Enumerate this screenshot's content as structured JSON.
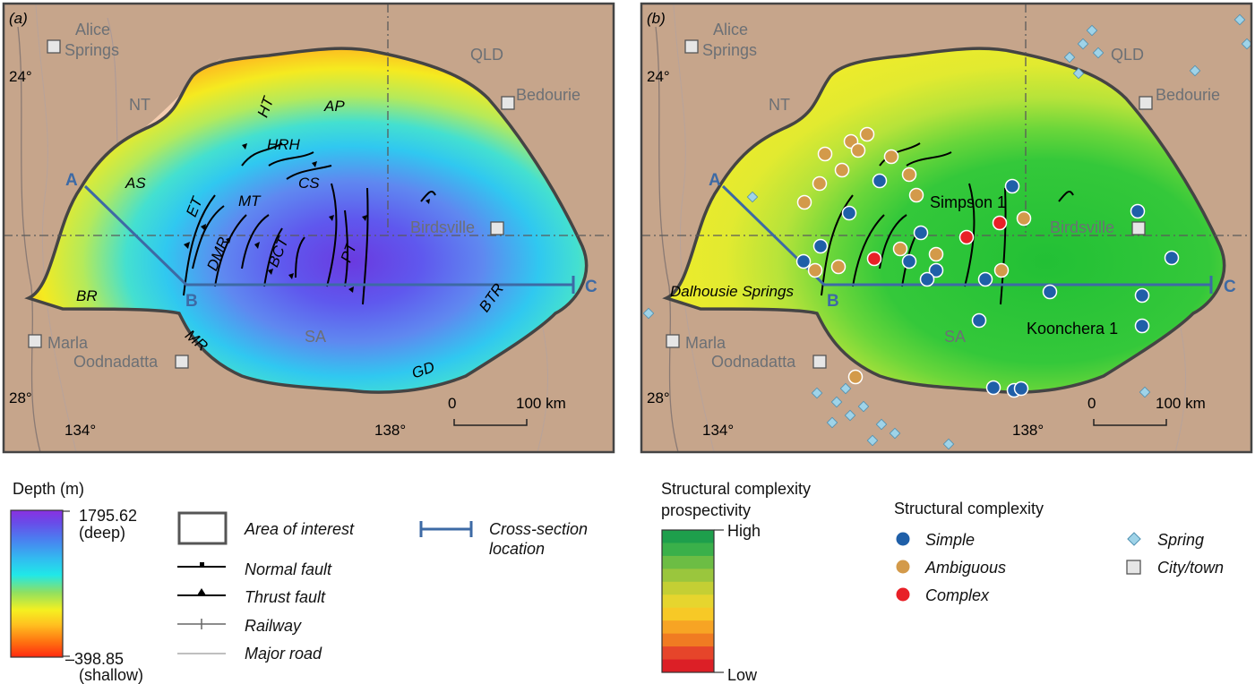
{
  "panel_a": {
    "panel_label": "(a)",
    "cities": [
      {
        "name": "Alice Springs",
        "lines": [
          "Alice",
          "Springs"
        ]
      },
      {
        "name": "Bedourie"
      },
      {
        "name": "Birdsville"
      },
      {
        "name": "Marla"
      },
      {
        "name": "Oodnadatta"
      }
    ],
    "states": [
      "NT",
      "QLD",
      "SA"
    ],
    "lat_ticks": [
      "24°",
      "28°"
    ],
    "lon_ticks": [
      "134°",
      "138°"
    ],
    "section_points": [
      "A",
      "B",
      "C"
    ],
    "region_labels": [
      "AS",
      "ET",
      "DMR",
      "MT",
      "BCT",
      "HT",
      "HRH",
      "AP",
      "CS",
      "PT",
      "BR",
      "MR",
      "BTR",
      "GD"
    ],
    "scalebar": {
      "start": "0",
      "end": "100 km"
    }
  },
  "panel_b": {
    "panel_label": "(b)",
    "cities": [
      {
        "name": "Alice Springs",
        "lines": [
          "Alice",
          "Springs"
        ]
      },
      {
        "name": "Bedourie"
      },
      {
        "name": "Birdsville"
      },
      {
        "name": "Marla"
      },
      {
        "name": "Oodnadatta"
      }
    ],
    "states": [
      "NT",
      "QLD",
      "SA"
    ],
    "lat_ticks": [
      "24°",
      "28°"
    ],
    "lon_ticks": [
      "134°",
      "138°"
    ],
    "section_points": [
      "A",
      "B",
      "C"
    ],
    "features": [
      "Simpson 1",
      "Koonchera 1",
      "Dalhousie Springs"
    ],
    "scalebar": {
      "start": "0",
      "end": "100 km"
    }
  },
  "legend_depth": {
    "title": "Depth (m)",
    "max_value": "1795.62",
    "max_label": "(deep)",
    "min_value": "–398.85",
    "min_label": "(shallow)",
    "colors": [
      "#ff2a10",
      "#ff7a10",
      "#ffc020",
      "#f5f020",
      "#8fe05a",
      "#20e8e8",
      "#30b8f0",
      "#4a70f0",
      "#6a3ae0",
      "#8a2ae0"
    ]
  },
  "legend_symbols": {
    "items": [
      "Area of interest",
      "Normal fault",
      "Thrust fault",
      "Railway",
      "Major road"
    ],
    "cross_section": [
      "Cross-section",
      "location"
    ]
  },
  "legend_prospectivity": {
    "title": [
      "Structural complexity",
      "prospectivity"
    ],
    "high": "High",
    "low": "Low",
    "colors": [
      "#1e9f4c",
      "#3ab04a",
      "#6cbd44",
      "#9ac63d",
      "#c4cf34",
      "#e6d52e",
      "#f7c926",
      "#f7a424",
      "#f07b22",
      "#e6452a",
      "#dc1f26"
    ]
  },
  "legend_complexity": {
    "title": "Structural complexity",
    "classes": [
      {
        "label": "Simple",
        "color": "#1f5fa8"
      },
      {
        "label": "Ambiguous",
        "color": "#d39a4a"
      },
      {
        "label": "Complex",
        "color": "#e82027"
      }
    ],
    "others": [
      {
        "label": "Spring",
        "color": "#9fd3e8",
        "icon": "diamond"
      },
      {
        "label": "City/town",
        "color": "#e6e6e6",
        "icon": "square"
      }
    ]
  },
  "colors": {
    "terrain": "#c8a88e",
    "outline": "#444444",
    "section_line": "#3d6aa5",
    "city_text": "#6c7075"
  }
}
